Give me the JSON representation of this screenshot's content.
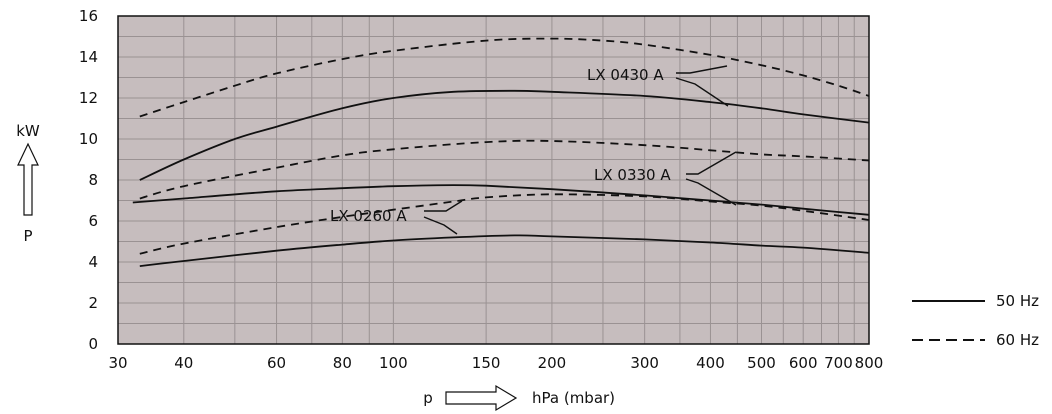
{
  "chart_data": {
    "type": "line",
    "x_scale": "log",
    "xlim": [
      30,
      800
    ],
    "ylim": [
      0,
      16
    ],
    "grid": true,
    "legend_position": "bottom-right",
    "plot_background": "#c6bdbe",
    "grid_color": "#9a9293",
    "line_color": "#111111",
    "xticks": [
      30,
      40,
      60,
      80,
      100,
      150,
      200,
      300,
      400,
      500,
      600,
      700,
      800
    ],
    "yticks": [
      0,
      2,
      4,
      6,
      8,
      10,
      12,
      14,
      16
    ],
    "x_axis_symbol": "p",
    "x_axis_unit": "hPa (mbar)",
    "y_axis_unit": "kW",
    "y_axis_symbol": "P",
    "legend": [
      {
        "label": "50 Hz",
        "dash": "solid"
      },
      {
        "label": "60 Hz",
        "dash": "dashed"
      }
    ],
    "curve_labels": [
      "LX 0430 A",
      "LX 0330 A",
      "LX 0260 A"
    ],
    "series": [
      {
        "model": "LX 0430 A",
        "frequency": "50 Hz",
        "dash": "solid",
        "x": [
          33,
          40,
          50,
          60,
          80,
          100,
          130,
          170,
          200,
          300,
          400,
          500,
          600,
          800
        ],
        "y": [
          8.0,
          9.0,
          10.0,
          10.6,
          11.5,
          12.0,
          12.3,
          12.35,
          12.3,
          12.1,
          11.8,
          11.5,
          11.2,
          10.8
        ]
      },
      {
        "model": "LX 0430 A",
        "frequency": "60 Hz",
        "dash": "dashed",
        "x": [
          33,
          40,
          50,
          60,
          80,
          100,
          150,
          200,
          250,
          300,
          400,
          500,
          600,
          700,
          800
        ],
        "y": [
          11.1,
          11.8,
          12.6,
          13.2,
          13.9,
          14.3,
          14.8,
          14.9,
          14.8,
          14.6,
          14.1,
          13.6,
          13.1,
          12.6,
          12.1
        ]
      },
      {
        "model": "LX 0330 A",
        "frequency": "50 Hz",
        "dash": "solid",
        "x": [
          32,
          40,
          60,
          80,
          100,
          130,
          150,
          200,
          300,
          400,
          500,
          600,
          800
        ],
        "y": [
          6.9,
          7.1,
          7.45,
          7.6,
          7.7,
          7.75,
          7.72,
          7.55,
          7.25,
          7.0,
          6.8,
          6.6,
          6.3
        ]
      },
      {
        "model": "LX 0330 A",
        "frequency": "60 Hz",
        "dash": "dashed",
        "x": [
          33,
          40,
          60,
          80,
          100,
          150,
          200,
          300,
          400,
          500,
          600,
          800
        ],
        "y": [
          7.1,
          7.7,
          8.6,
          9.2,
          9.5,
          9.85,
          9.9,
          9.7,
          9.45,
          9.25,
          9.15,
          8.95
        ]
      },
      {
        "model": "LX 0260 A",
        "frequency": "50 Hz",
        "dash": "solid",
        "x": [
          33,
          40,
          60,
          80,
          100,
          130,
          170,
          200,
          300,
          400,
          500,
          600,
          800
        ],
        "y": [
          3.8,
          4.05,
          4.55,
          4.85,
          5.05,
          5.2,
          5.3,
          5.25,
          5.1,
          4.95,
          4.8,
          4.7,
          4.45
        ]
      },
      {
        "model": "LX 0260 A",
        "frequency": "60 Hz",
        "dash": "dashed",
        "x": [
          33,
          40,
          60,
          80,
          100,
          130,
          150,
          200,
          300,
          400,
          500,
          600,
          800
        ],
        "y": [
          4.4,
          4.9,
          5.7,
          6.2,
          6.55,
          6.95,
          7.15,
          7.3,
          7.2,
          6.95,
          6.75,
          6.5,
          6.05
        ]
      }
    ]
  }
}
